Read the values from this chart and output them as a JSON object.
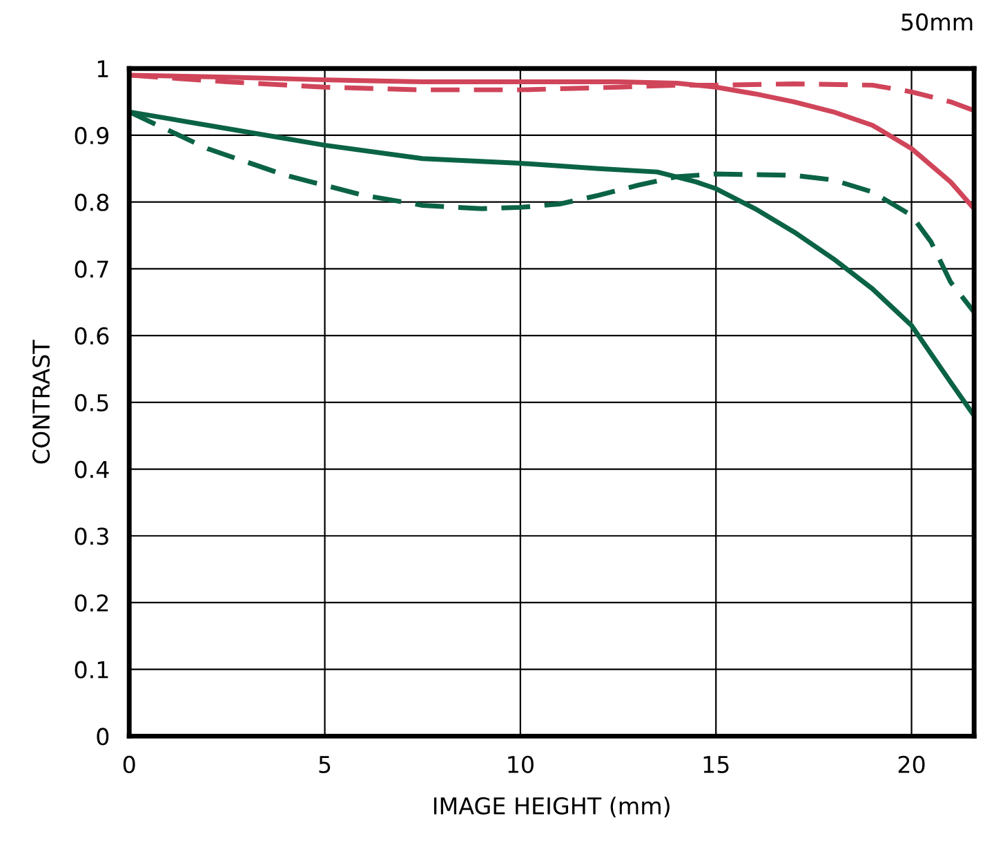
{
  "chart_data": {
    "type": "line",
    "xlabel": "IMAGE HEIGHT (mm)",
    "ylabel": "CONTRAST",
    "annotations": [
      "50mm"
    ],
    "xlim": [
      0,
      21.6
    ],
    "ylim": [
      0,
      1
    ],
    "xticks": [
      0,
      5,
      10,
      15,
      20
    ],
    "yticks": [
      0,
      0.1,
      0.2,
      0.3,
      0.4,
      0.5,
      0.6,
      0.7,
      0.8,
      0.9,
      1
    ],
    "grid": true,
    "marker": "none",
    "series": [
      {
        "color": "#d0455a",
        "line_style": "solid",
        "x": [
          0,
          2.5,
          5,
          7.5,
          10,
          12.5,
          14,
          15,
          16,
          17,
          18,
          19,
          20,
          21,
          21.6
        ],
        "values": [
          0.99,
          0.987,
          0.983,
          0.98,
          0.98,
          0.98,
          0.978,
          0.972,
          0.962,
          0.95,
          0.935,
          0.915,
          0.88,
          0.83,
          0.79
        ]
      },
      {
        "color": "#d0455a",
        "line_style": "dashed",
        "x": [
          0,
          2.5,
          5,
          7.5,
          10,
          12.5,
          14,
          15,
          17,
          19,
          20,
          21,
          21.6
        ],
        "values": [
          0.99,
          0.98,
          0.972,
          0.968,
          0.968,
          0.972,
          0.975,
          0.975,
          0.977,
          0.975,
          0.965,
          0.95,
          0.937
        ]
      },
      {
        "color": "#0b6345",
        "line_style": "solid",
        "x": [
          0,
          2.5,
          5,
          7.5,
          10,
          12,
          13.5,
          14.5,
          15,
          16,
          17,
          18,
          19,
          20,
          21,
          21.6
        ],
        "values": [
          0.935,
          0.91,
          0.885,
          0.865,
          0.858,
          0.85,
          0.845,
          0.83,
          0.82,
          0.79,
          0.755,
          0.715,
          0.67,
          0.615,
          0.53,
          0.48
        ]
      },
      {
        "color": "#0b6345",
        "line_style": "dashed",
        "x": [
          0,
          2,
          4,
          6,
          7.5,
          9,
          10,
          11,
          12,
          13,
          14,
          15,
          17,
          18,
          19,
          20,
          20.5,
          21,
          21.6
        ],
        "values": [
          0.935,
          0.88,
          0.84,
          0.81,
          0.795,
          0.79,
          0.792,
          0.797,
          0.81,
          0.825,
          0.838,
          0.842,
          0.84,
          0.833,
          0.815,
          0.78,
          0.74,
          0.68,
          0.635
        ]
      }
    ]
  }
}
